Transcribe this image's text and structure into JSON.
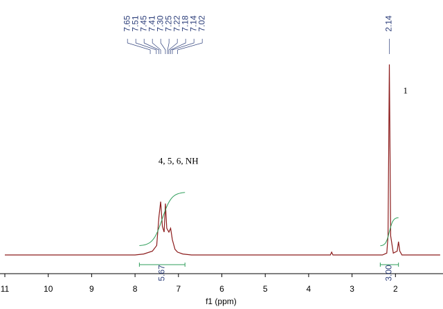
{
  "chart_data": {
    "type": "nmr",
    "x_label": "f1 (ppm)",
    "xlim": [
      11,
      0.97
    ],
    "xticks": [
      11,
      10,
      9,
      8,
      7,
      6,
      5,
      4,
      3,
      2
    ],
    "color": "#8b1a1a",
    "integral_color": "#2e9e5a",
    "label_color": "#2c3e7a",
    "x": [
      11,
      8.0,
      7.8,
      7.6,
      7.5,
      7.45,
      7.41,
      7.37,
      7.33,
      7.3,
      7.27,
      7.22,
      7.18,
      7.14,
      7.08,
      7.02,
      6.9,
      6.7,
      3.5,
      3.47,
      3.44,
      2.3,
      2.2,
      2.17,
      2.14,
      2.11,
      2.05,
      1.96,
      1.93,
      1.9,
      1.85,
      0.97
    ],
    "values": [
      0,
      0,
      0.5,
      2,
      5,
      20,
      28,
      15,
      12,
      27,
      14,
      12,
      14,
      8,
      3,
      1.5,
      0.5,
      0,
      0,
      1.5,
      0,
      0,
      1,
      10,
      100,
      10,
      1,
      2,
      7,
      2,
      0,
      0
    ],
    "peaks": [
      7.65,
      7.51,
      7.45,
      7.41,
      {
        "value": 7.3,
        "label": "7.30"
      },
      7.25,
      7.22,
      7.18,
      7.14,
      7.02,
      2.14
    ],
    "integrals": [
      {
        "range": [
          7.9,
          6.85
        ],
        "value": 5.67
      },
      {
        "range": [
          2.35,
          1.93
        ],
        "value": 3,
        "value_label": "3.00"
      }
    ],
    "annotations": [
      {
        "text": "4, 5, 6, NH",
        "x": 7.0,
        "y": 38
      },
      {
        "text": "1",
        "x": 1.93,
        "y": 93
      }
    ]
  }
}
